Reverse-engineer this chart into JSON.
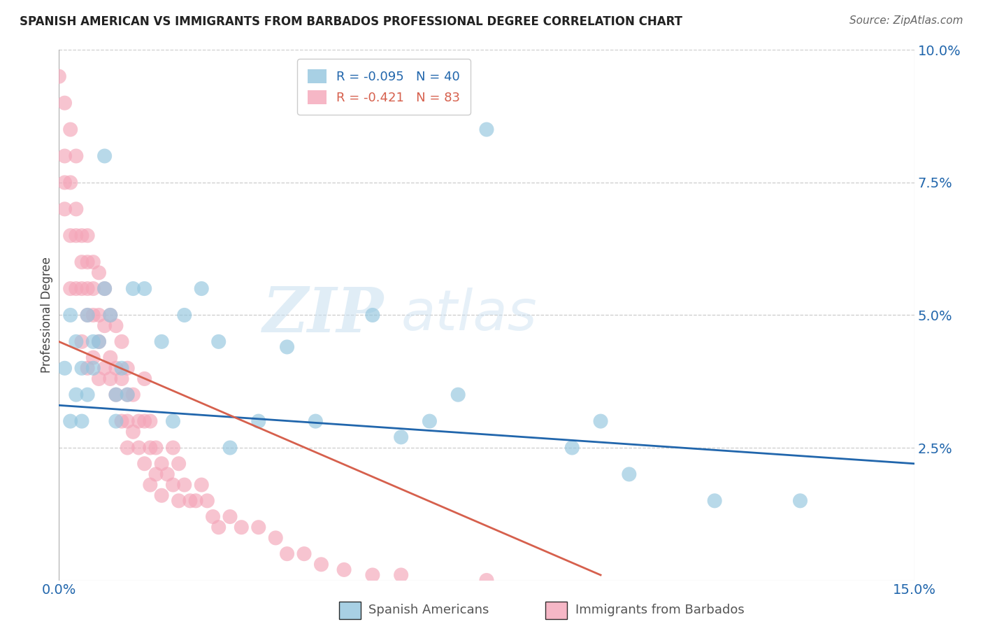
{
  "title": "SPANISH AMERICAN VS IMMIGRANTS FROM BARBADOS PROFESSIONAL DEGREE CORRELATION CHART",
  "source": "Source: ZipAtlas.com",
  "ylabel": "Professional Degree",
  "xlim": [
    0.0,
    0.15
  ],
  "ylim": [
    0.0,
    0.1
  ],
  "yticks": [
    0.0,
    0.025,
    0.05,
    0.075,
    0.1
  ],
  "ytick_labels": [
    "",
    "2.5%",
    "5.0%",
    "7.5%",
    "10.0%"
  ],
  "xticks": [
    0.0,
    0.15
  ],
  "xtick_labels": [
    "0.0%",
    "15.0%"
  ],
  "legend_r1": "R = -0.095",
  "legend_n1": "N = 40",
  "legend_r2": "R = -0.421",
  "legend_n2": "N = 83",
  "blue_color": "#92c5de",
  "pink_color": "#f4a5b8",
  "blue_line_color": "#2166ac",
  "pink_line_color": "#d6604d",
  "background_color": "#ffffff",
  "watermark_zip": "ZIP",
  "watermark_atlas": "atlas",
  "blue_dots_x": [
    0.001,
    0.002,
    0.002,
    0.003,
    0.003,
    0.004,
    0.004,
    0.005,
    0.005,
    0.006,
    0.006,
    0.007,
    0.008,
    0.008,
    0.009,
    0.01,
    0.01,
    0.011,
    0.012,
    0.013,
    0.015,
    0.018,
    0.02,
    0.022,
    0.025,
    0.028,
    0.03,
    0.035,
    0.04,
    0.045,
    0.055,
    0.06,
    0.065,
    0.07,
    0.075,
    0.09,
    0.095,
    0.1,
    0.115,
    0.13
  ],
  "blue_dots_y": [
    0.04,
    0.03,
    0.05,
    0.045,
    0.035,
    0.03,
    0.04,
    0.05,
    0.035,
    0.045,
    0.04,
    0.045,
    0.08,
    0.055,
    0.05,
    0.035,
    0.03,
    0.04,
    0.035,
    0.055,
    0.055,
    0.045,
    0.03,
    0.05,
    0.055,
    0.045,
    0.025,
    0.03,
    0.044,
    0.03,
    0.05,
    0.027,
    0.03,
    0.035,
    0.085,
    0.025,
    0.03,
    0.02,
    0.015,
    0.015
  ],
  "pink_dots_x": [
    0.0,
    0.001,
    0.001,
    0.001,
    0.001,
    0.002,
    0.002,
    0.002,
    0.002,
    0.003,
    0.003,
    0.003,
    0.003,
    0.004,
    0.004,
    0.004,
    0.004,
    0.005,
    0.005,
    0.005,
    0.005,
    0.005,
    0.006,
    0.006,
    0.006,
    0.006,
    0.007,
    0.007,
    0.007,
    0.007,
    0.008,
    0.008,
    0.008,
    0.009,
    0.009,
    0.009,
    0.01,
    0.01,
    0.01,
    0.011,
    0.011,
    0.011,
    0.012,
    0.012,
    0.012,
    0.012,
    0.013,
    0.013,
    0.014,
    0.014,
    0.015,
    0.015,
    0.015,
    0.016,
    0.016,
    0.016,
    0.017,
    0.017,
    0.018,
    0.018,
    0.019,
    0.02,
    0.02,
    0.021,
    0.021,
    0.022,
    0.023,
    0.024,
    0.025,
    0.026,
    0.027,
    0.028,
    0.03,
    0.032,
    0.035,
    0.038,
    0.04,
    0.043,
    0.046,
    0.05,
    0.055,
    0.06,
    0.075
  ],
  "pink_dots_y": [
    0.095,
    0.09,
    0.08,
    0.075,
    0.07,
    0.085,
    0.075,
    0.065,
    0.055,
    0.08,
    0.07,
    0.065,
    0.055,
    0.065,
    0.06,
    0.055,
    0.045,
    0.065,
    0.06,
    0.055,
    0.05,
    0.04,
    0.06,
    0.055,
    0.05,
    0.042,
    0.058,
    0.05,
    0.045,
    0.038,
    0.055,
    0.048,
    0.04,
    0.05,
    0.042,
    0.038,
    0.048,
    0.04,
    0.035,
    0.045,
    0.038,
    0.03,
    0.04,
    0.035,
    0.03,
    0.025,
    0.035,
    0.028,
    0.03,
    0.025,
    0.038,
    0.03,
    0.022,
    0.03,
    0.025,
    0.018,
    0.025,
    0.02,
    0.022,
    0.016,
    0.02,
    0.025,
    0.018,
    0.022,
    0.015,
    0.018,
    0.015,
    0.015,
    0.018,
    0.015,
    0.012,
    0.01,
    0.012,
    0.01,
    0.01,
    0.008,
    0.005,
    0.005,
    0.003,
    0.002,
    0.001,
    0.001,
    0.0
  ],
  "blue_line_x": [
    0.0,
    0.15
  ],
  "blue_line_y": [
    0.033,
    0.022
  ],
  "pink_line_x": [
    0.0,
    0.095
  ],
  "pink_line_y": [
    0.045,
    0.001
  ]
}
